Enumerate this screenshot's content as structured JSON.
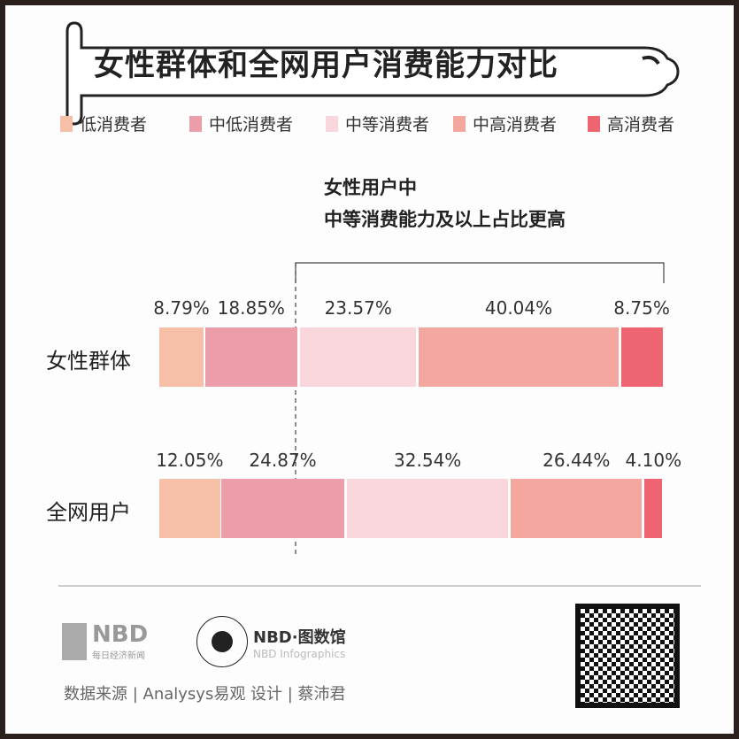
{
  "title": "女性群体和全网用户消费能力对比",
  "annotation": {
    "line1": "女性用户中",
    "line2": "中等消费能力及以上占比更高"
  },
  "footer": {
    "source": "数据来源 | Analysys易观  设计 | 蔡沛君",
    "logo1": "NBD",
    "logo1_sub": "每日经济新闻",
    "logo2": "NBD·图数馆",
    "logo2_sub": "NBD Infographics"
  },
  "chart_data": {
    "type": "bar",
    "stacked": true,
    "orientation": "horizontal",
    "unit": "%",
    "categories": [
      "女性群体",
      "全网用户"
    ],
    "series": [
      {
        "name": "低消费者",
        "color": "#f6c0a8",
        "values": [
          8.79,
          12.05
        ],
        "labels": [
          "8.79%",
          "12.05%"
        ]
      },
      {
        "name": "中低消费者",
        "color": "#eb9ea9",
        "values": [
          18.85,
          24.87
        ],
        "labels": [
          "18.85%",
          "24.87%"
        ]
      },
      {
        "name": "中等消费者",
        "color": "#f9d6dc",
        "values": [
          23.57,
          32.54
        ],
        "labels": [
          "23.57%",
          "32.54%"
        ]
      },
      {
        "name": "中高消费者",
        "color": "#f3a79f",
        "values": [
          40.04,
          26.44
        ],
        "labels": [
          "40.04%",
          "26.44%"
        ]
      },
      {
        "name": "高消费者",
        "color": "#ee6470",
        "values": [
          8.75,
          4.1
        ],
        "labels": [
          "8.75%",
          "4.10%"
        ]
      }
    ],
    "legend": "top"
  }
}
